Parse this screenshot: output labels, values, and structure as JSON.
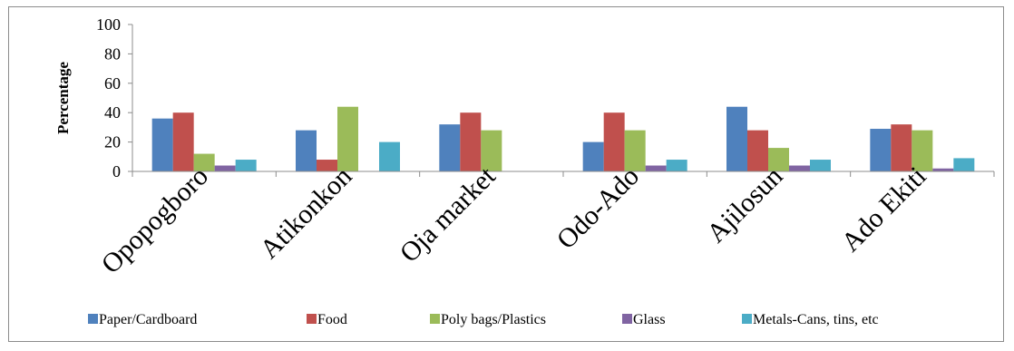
{
  "chart_data": {
    "type": "bar",
    "title": "",
    "xlabel": "",
    "ylabel": "Percentage",
    "ylim": [
      0,
      100
    ],
    "yticks": [
      "0",
      "20",
      "40",
      "60",
      "80",
      "100"
    ],
    "grid": false,
    "legend_position": "bottom",
    "categories": [
      "Opopogboro",
      "Atikonkon",
      "Oja market",
      "Odo-Ado",
      "Ajilosun",
      "Ado Ekiti"
    ],
    "series": [
      {
        "name": "Paper/Cardboard",
        "color": "#4f81bd",
        "values": [
          36,
          28,
          32,
          20,
          44,
          29
        ]
      },
      {
        "name": "Food",
        "color": "#c0504d",
        "values": [
          40,
          8,
          40,
          40,
          28,
          32
        ]
      },
      {
        "name": "Poly bags/Plastics",
        "color": "#9bbb59",
        "values": [
          12,
          44,
          28,
          28,
          16,
          28
        ]
      },
      {
        "name": "Glass",
        "color": "#8064a2",
        "values": [
          4,
          0,
          0,
          4,
          4,
          2
        ]
      },
      {
        "name": "Metals-Cans, tins, etc",
        "color": "#4bacc6",
        "values": [
          8,
          20,
          0,
          8,
          8,
          9
        ]
      }
    ]
  }
}
